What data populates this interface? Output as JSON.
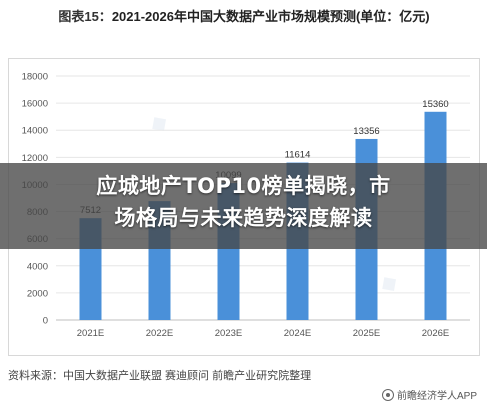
{
  "header": {
    "lead": "图表15：",
    "title": "2021-2026年中国大数据产业市场规模预测(单位：亿元)"
  },
  "chart_data": {
    "type": "bar",
    "categories": [
      "2021E",
      "2022E",
      "2023E",
      "2024E",
      "2025E",
      "2026E"
    ],
    "values": [
      7512,
      8770,
      10099,
      11614,
      13356,
      15360
    ],
    "value_labels": [
      "7512",
      "",
      "10099",
      "11614",
      "13356",
      "15360"
    ],
    "yticks": [
      "0",
      "2000",
      "4000",
      "6000",
      "8000",
      "10000",
      "12000",
      "14000",
      "16000",
      "18000"
    ],
    "ylim": [
      0,
      18000
    ],
    "bar_color": "#4a90d9",
    "grid": true,
    "title": "",
    "xlabel": "",
    "ylabel": ""
  },
  "banner": {
    "line1": "应城地产TOP10榜单揭晓，市",
    "line2": "场格局与未来趋势深度解读"
  },
  "footer": {
    "source_label": "资料来源：",
    "source_text": "中国大数据产业联盟 赛迪顾问 前瞻产业研究院整理",
    "app_name": "前瞻经济学人APP"
  }
}
